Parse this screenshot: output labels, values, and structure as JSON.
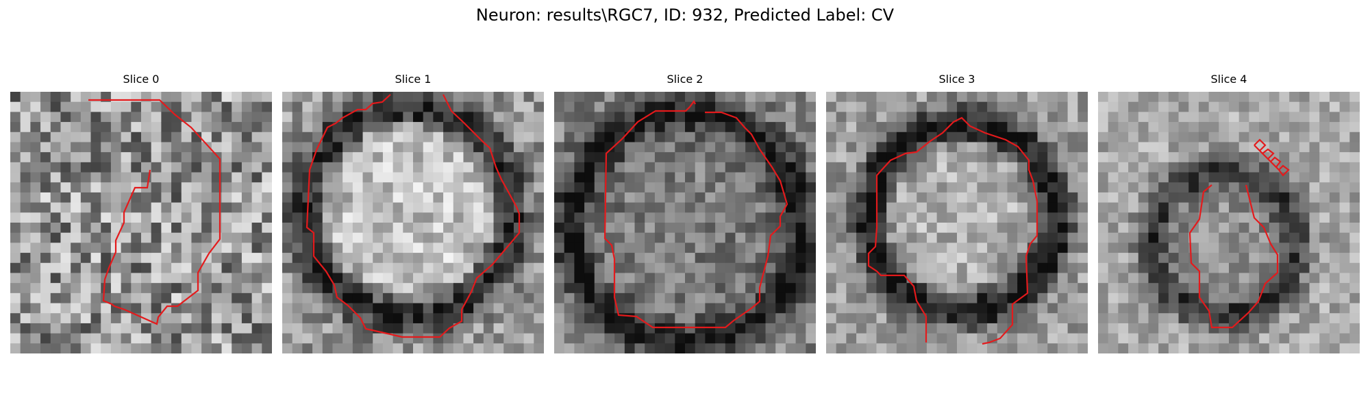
{
  "figure": {
    "title": "Neuron: results\\RGC7, ID: 932, Predicted Label: CV",
    "contour_color": "#e41a1c",
    "panels": [
      {
        "title": "Slice 0",
        "image": "grayscale-microscopy-slice"
      },
      {
        "title": "Slice 1",
        "image": "grayscale-microscopy-slice"
      },
      {
        "title": "Slice 2",
        "image": "grayscale-microscopy-slice"
      },
      {
        "title": "Slice 3",
        "image": "grayscale-microscopy-slice"
      },
      {
        "title": "Slice 4",
        "image": "grayscale-microscopy-slice"
      }
    ]
  }
}
